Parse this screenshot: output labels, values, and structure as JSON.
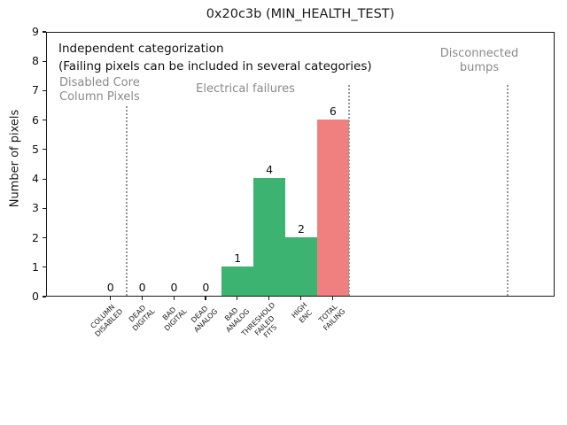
{
  "title": "0x20c3b (MIN_HEALTH_TEST)",
  "annotations": {
    "independent": "Independent categorization",
    "note": "(Failing pixels can be included in several categories)",
    "group_disabled": "Disabled Core\nColumn Pixels",
    "group_electrical": "Electrical failures",
    "group_disconnected": "Disconnected\nbumps"
  },
  "colors": {
    "bar_green": "#3cb371",
    "bar_red": "#f08080",
    "annotation_gray": "#8a8a8a",
    "separator_gray": "#979797",
    "axis_black": "#1a1a1a"
  },
  "chart_data": {
    "type": "bar",
    "title": "0x20c3b (MIN_HEALTH_TEST)",
    "xlabel": "",
    "ylabel": "Number of pixels",
    "categories": [
      "COLUMN DISABLED",
      "DEAD DIGITAL",
      "BAD DIGITAL",
      "DEAD ANALOG",
      "BAD ANALOG",
      "THRESHOLD FAILED FITS",
      "HIGH ENC",
      "TOTAL FAILING"
    ],
    "values": [
      0,
      0,
      0,
      0,
      1,
      4,
      2,
      6
    ],
    "bar_colors": [
      "#3cb371",
      "#3cb371",
      "#3cb371",
      "#3cb371",
      "#3cb371",
      "#3cb371",
      "#3cb371",
      "#f08080"
    ],
    "bar_positions": [
      1,
      2,
      3,
      4,
      5,
      6,
      7,
      8
    ],
    "value_labels": [
      "0",
      "0",
      "0",
      "0",
      "1",
      "4",
      "2",
      "6"
    ],
    "ylim": [
      0,
      9
    ],
    "xlim": [
      -1,
      15
    ],
    "ytick_step": 1,
    "grid": false,
    "legend": null,
    "group_separators_x": [
      1.5,
      8.5,
      13.5
    ],
    "groups": [
      {
        "label": "Disabled Core\nColumn Pixels",
        "bars": [
          "COLUMN DISABLED"
        ]
      },
      {
        "label": "Electrical failures",
        "bars": [
          "DEAD DIGITAL",
          "BAD DIGITAL",
          "DEAD ANALOG",
          "BAD ANALOG",
          "THRESHOLD FAILED FITS",
          "HIGH ENC",
          "TOTAL FAILING"
        ]
      },
      {
        "label": "Disconnected\nbumps",
        "bars": []
      }
    ]
  }
}
